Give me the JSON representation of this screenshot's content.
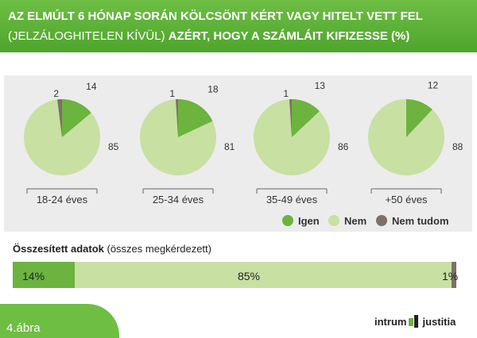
{
  "header": {
    "line1": "AZ ELMÚLT 6 HÓNAP SORÁN KÖLCSÖNT KÉRT VAGY HITELT VETT FEL",
    "line2_part1": "(JELZÁLOGHITELEN KÍVÜL) ",
    "line2_part2": "AZÉRT, HOGY A SZÁMLÁIT KIFIZESSE   (%)"
  },
  "colors": {
    "igen": "#6cb33f",
    "nem": "#c8e0a2",
    "nem_tudom": "#7d7068",
    "header": "#5db236"
  },
  "chart_data": [
    {
      "type": "pie",
      "groups": [
        {
          "label": "18-24 éves",
          "igen": 14,
          "nem": 85,
          "nem_tudom": 2
        },
        {
          "label": "25-34 éves",
          "igen": 18,
          "nem": 81,
          "nem_tudom": 1
        },
        {
          "label": "35-49 éves",
          "igen": 13,
          "nem": 86,
          "nem_tudom": 1
        },
        {
          "label": "+50 éves",
          "igen": 12,
          "nem": 88,
          "nem_tudom": null
        }
      ],
      "legend": [
        "Igen",
        "Nem",
        "Nem tudom"
      ]
    },
    {
      "type": "bar",
      "title_bold": "Összesített adatok",
      "title_rest": " (összes megkérdezett)",
      "segments": [
        {
          "label": "14%",
          "value": 14
        },
        {
          "label": "85%",
          "value": 85
        },
        {
          "label": "1%",
          "value": 1
        }
      ]
    }
  ],
  "footer": {
    "figure_label": "4.ábra",
    "logo_left": "intrum",
    "logo_right": "justitia"
  }
}
